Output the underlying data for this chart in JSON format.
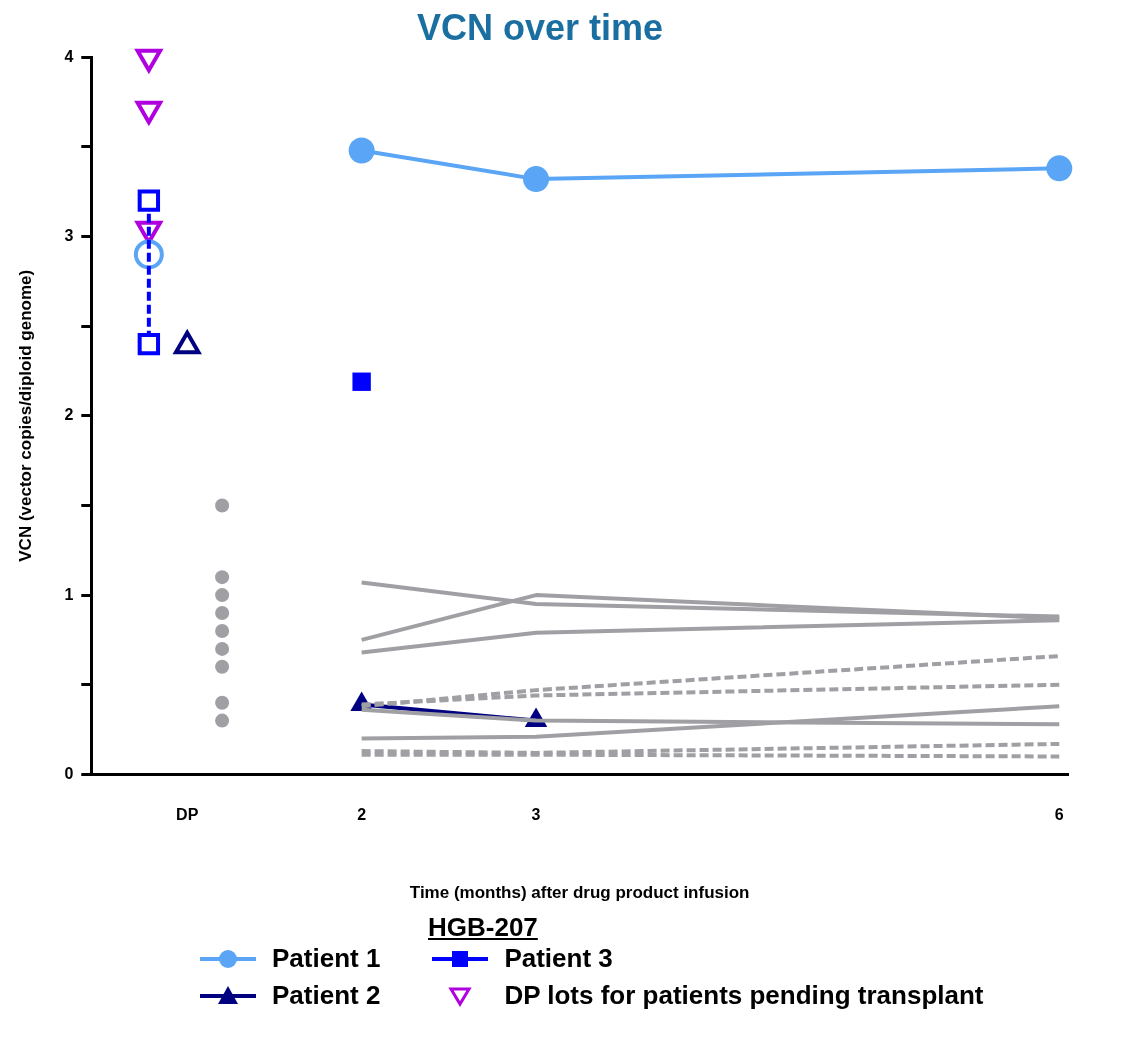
{
  "chart_data": {
    "type": "line",
    "title": "VCN over time",
    "xlabel": "Time (months) after drug product infusion",
    "ylabel": "VCN (vector copies/diploid genome)",
    "legend_title": "HGB-207",
    "xlim": [
      0.45,
      6.05
    ],
    "xticks": [
      {
        "value": 1,
        "label": "DP"
      },
      2,
      3,
      6
    ],
    "ylim": [
      0,
      4
    ],
    "yticks": [
      0,
      {
        "value": 0.5,
        "label": null
      },
      1,
      {
        "value": 1.5,
        "label": null
      },
      2,
      {
        "value": 2.5,
        "label": null
      },
      3,
      {
        "value": 3.5,
        "label": null
      },
      4
    ],
    "grid": false,
    "legend": "bottom",
    "series": [
      {
        "type": "line",
        "x": [
          2,
          3,
          6
        ],
        "values": [
          1.07,
          0.95,
          0.88
        ],
        "color": "#a0a0a4",
        "marker": "none",
        "line_style": "solid"
      },
      {
        "type": "line",
        "x": [
          2,
          3,
          6
        ],
        "values": [
          0.75,
          1.0,
          0.87
        ],
        "color": "#a0a0a4",
        "marker": "none",
        "line_style": "solid"
      },
      {
        "type": "line",
        "x": [
          2,
          3,
          6
        ],
        "values": [
          0.68,
          0.79,
          0.86
        ],
        "color": "#a0a0a4",
        "marker": "none",
        "line_style": "solid"
      },
      {
        "type": "line",
        "x": [
          2,
          3,
          6
        ],
        "values": [
          0.36,
          0.3,
          0.28
        ],
        "color": "#a0a0a4",
        "marker": "none",
        "line_style": "solid"
      },
      {
        "type": "line",
        "x": [
          2,
          3,
          6
        ],
        "values": [
          0.2,
          0.21,
          0.38
        ],
        "color": "#a0a0a4",
        "marker": "none",
        "line_style": "solid"
      },
      {
        "type": "line",
        "x": [
          2,
          3,
          6
        ],
        "values": [
          0.38,
          0.47,
          0.66
        ],
        "color": "#a0a0a4",
        "marker": "none",
        "line_style": "dashed"
      },
      {
        "type": "line",
        "x": [
          2,
          3,
          6
        ],
        "values": [
          0.39,
          0.44,
          0.5
        ],
        "color": "#a0a0a4",
        "marker": "none",
        "line_style": "dashed"
      },
      {
        "type": "line",
        "x": [
          2,
          3,
          6
        ],
        "values": [
          0.13,
          0.12,
          0.17
        ],
        "color": "#a0a0a4",
        "marker": "none",
        "line_style": "dashed"
      },
      {
        "type": "line",
        "x": [
          2,
          3,
          6
        ],
        "values": [
          0.11,
          0.11,
          0.1
        ],
        "color": "#a0a0a4",
        "marker": "none",
        "line_style": "dashed"
      },
      {
        "type": "scatter",
        "x": [
          1.2,
          1.2,
          1.2,
          1.2,
          1.2,
          1.2,
          1.2,
          1.2,
          1.2
        ],
        "values": [
          1.5,
          1.1,
          1.0,
          0.9,
          0.8,
          0.7,
          0.6,
          0.4,
          0.3
        ],
        "color": "#a0a0a4",
        "marker": "circle"
      },
      {
        "type": "scatter",
        "x": [
          1
        ],
        "values": [
          2.39
        ],
        "color": "#000080",
        "marker": "triangle"
      },
      {
        "type": "line",
        "x": [
          0.78,
          0.78
        ],
        "values": [
          3.2,
          2.4
        ],
        "color": "#0000ff",
        "marker": "square",
        "line_style": "dashed"
      },
      {
        "type": "scatter",
        "x": [
          0.78
        ],
        "values": [
          2.9
        ],
        "color": "#5aa5f5",
        "marker": "circle"
      },
      {
        "name": "Patient 1",
        "type": "line",
        "x": [
          2,
          3,
          6
        ],
        "values": [
          3.48,
          3.32,
          3.38
        ],
        "color": "#5aa5f5",
        "marker": "circle",
        "line_style": "solid"
      },
      {
        "name": "Patient 2",
        "type": "line",
        "x": [
          2,
          3
        ],
        "values": [
          0.39,
          0.3
        ],
        "color": "#000080",
        "marker": "triangle",
        "line_style": "solid"
      },
      {
        "name": "Patient 3",
        "type": "line",
        "x": [
          2
        ],
        "values": [
          2.19
        ],
        "color": "#0000ff",
        "marker": "square",
        "line_style": "solid"
      },
      {
        "name": "DP lots for patients pending transplant",
        "type": "scatter",
        "x": [
          0.78,
          0.78,
          0.78
        ],
        "values": [
          4.0,
          3.71,
          3.04
        ],
        "color": "#b000e0",
        "marker": "triangle_down"
      }
    ]
  }
}
